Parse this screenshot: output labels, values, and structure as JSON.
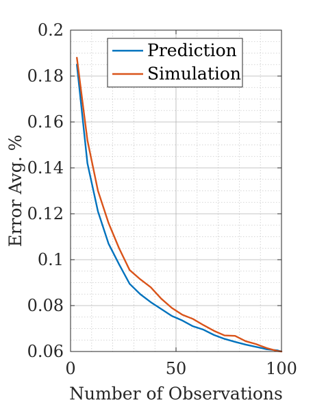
{
  "chart_data": {
    "type": "line",
    "xlabel": "Number of Observations",
    "ylabel": "Error Avg. %",
    "xlim": [
      0,
      100
    ],
    "ylim": [
      0.06,
      0.2
    ],
    "xticks": [
      0,
      50,
      100
    ],
    "yticks": [
      0.06,
      0.08,
      0.1,
      0.12,
      0.14,
      0.16,
      0.18,
      0.2
    ],
    "xtick_labels": [
      "0",
      "50",
      "100"
    ],
    "ytick_labels": [
      "0.06",
      "0.08",
      "0.1",
      "0.12",
      "0.14",
      "0.16",
      "0.18",
      "0.2"
    ],
    "grid": "major and minor",
    "legend_position": "top-right",
    "series": [
      {
        "name": "Prediction",
        "color": "#0072BD",
        "x": [
          3,
          8,
          13,
          18,
          23,
          28,
          33,
          38,
          43,
          48,
          53,
          58,
          63,
          68,
          73,
          78,
          83,
          88,
          93,
          98,
          100
        ],
        "y": [
          0.185,
          0.142,
          0.121,
          0.107,
          0.098,
          0.0895,
          0.085,
          0.0815,
          0.0785,
          0.0755,
          0.0735,
          0.071,
          0.0695,
          0.0672,
          0.0655,
          0.0642,
          0.063,
          0.062,
          0.061,
          0.0605,
          0.06
        ]
      },
      {
        "name": "Simulation",
        "color": "#D95319",
        "x": [
          3,
          8,
          13,
          18,
          23,
          28,
          33,
          38,
          43,
          48,
          53,
          58,
          63,
          68,
          73,
          78,
          83,
          88,
          93,
          98,
          100
        ],
        "y": [
          0.188,
          0.152,
          0.13,
          0.116,
          0.105,
          0.0955,
          0.0915,
          0.088,
          0.083,
          0.079,
          0.076,
          0.0742,
          0.0715,
          0.069,
          0.067,
          0.0668,
          0.0645,
          0.0632,
          0.0615,
          0.0602,
          0.06
        ]
      }
    ]
  }
}
